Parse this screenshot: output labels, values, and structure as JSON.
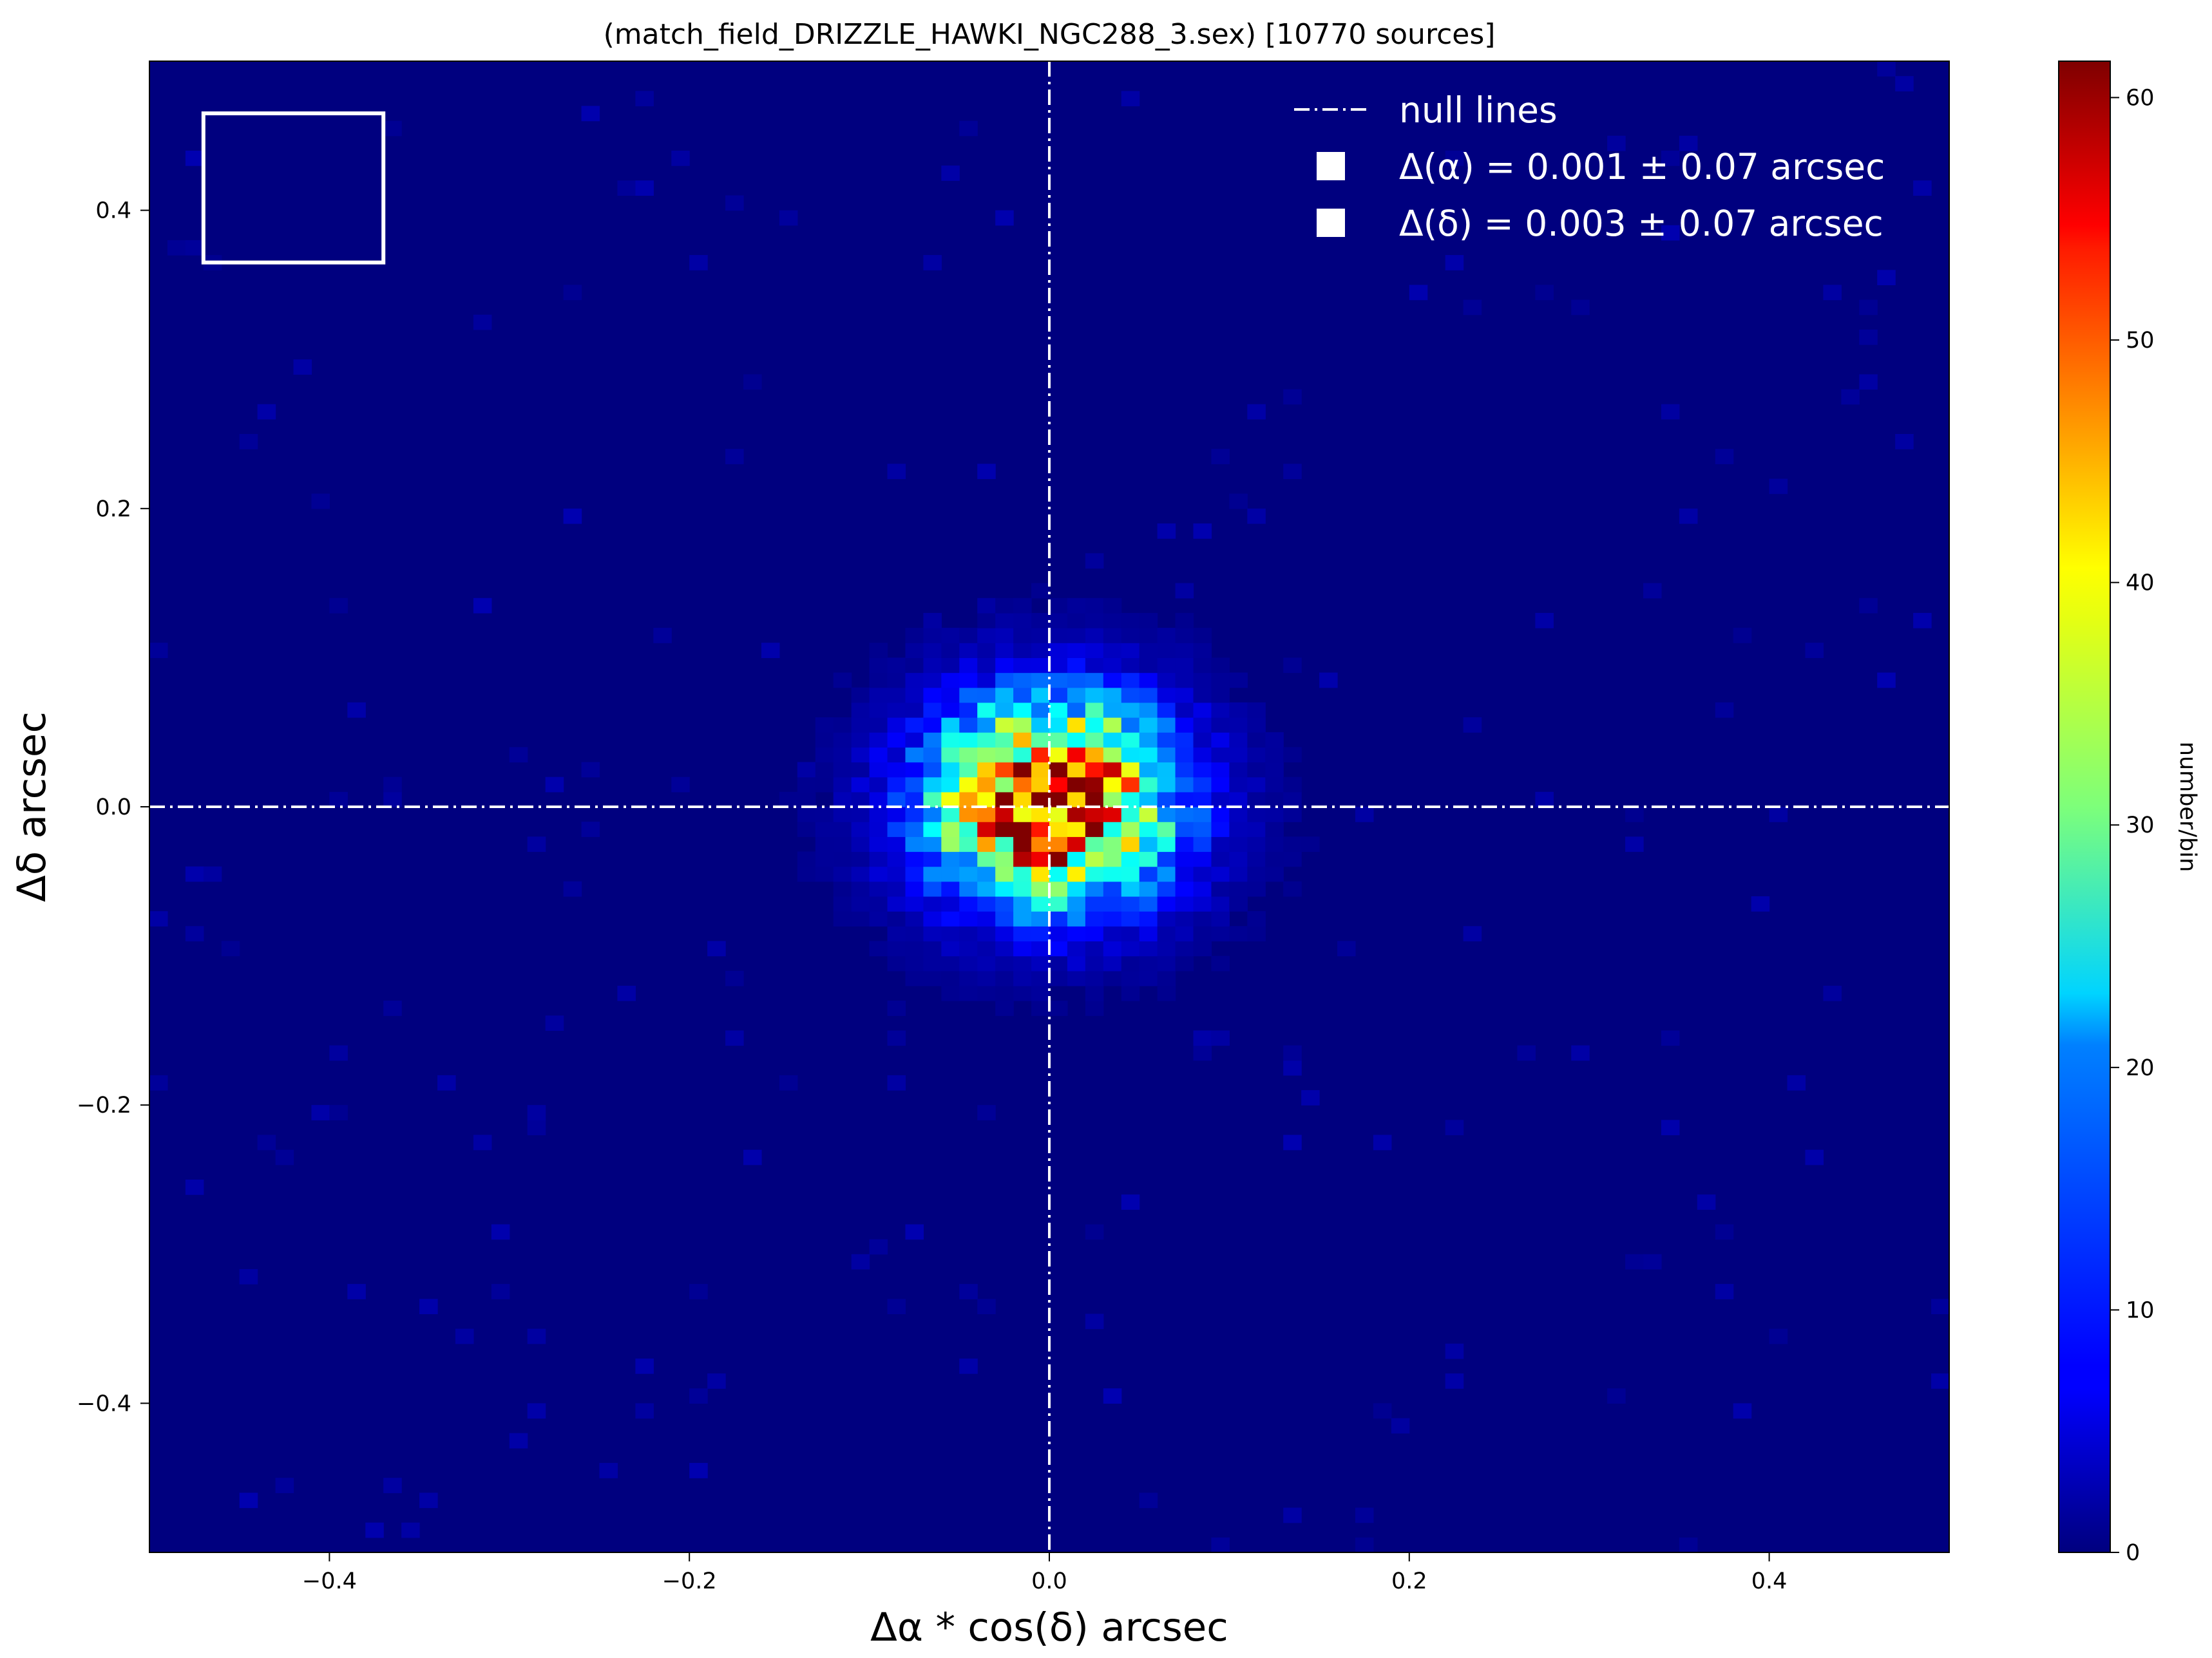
{
  "chart_data": {
    "type": "heatmap",
    "title": "(match_field_DRIZZLE_HAWKI_NGC288_3.sex)  [10770  sources]",
    "xlabel": "Δα * cos(δ) arcsec",
    "ylabel": "Δδ arcsec",
    "colorbar_label": "number/bin",
    "xlim": [
      -0.5,
      0.5
    ],
    "ylim": [
      -0.5,
      0.5
    ],
    "x_ticks": [
      -0.4,
      -0.2,
      0.0,
      0.2,
      0.4
    ],
    "x_tick_labels": [
      "−0.4",
      "−0.2",
      "0.0",
      "0.2",
      "0.4"
    ],
    "y_ticks": [
      -0.4,
      -0.2,
      0.0,
      0.2,
      0.4
    ],
    "y_tick_labels": [
      "−0.4",
      "−0.2",
      "0.0",
      "0.2",
      "0.4"
    ],
    "colorbar_range": [
      0,
      61.5
    ],
    "colorbar_ticks": [
      0,
      10,
      20,
      30,
      40,
      50,
      60
    ],
    "colorbar_tick_labels": [
      "0",
      "10",
      "20",
      "30",
      "40",
      "50",
      "60"
    ],
    "colormap": "jet",
    "bins_per_axis": 100,
    "peak_counts": 61,
    "n_sources": 10770,
    "center": {
      "dx": 0.001,
      "dy": 0.003
    },
    "sigma": {
      "dx": 0.07,
      "dy": 0.07
    },
    "null_lines": {
      "x": 0.0,
      "y": 0.0
    },
    "inset_box": {
      "x0": -0.47,
      "x1": -0.37,
      "y0": 0.365,
      "y1": 0.465,
      "color": "#ffffff"
    },
    "legend": {
      "position": "upper right",
      "entries": [
        "null lines",
        "Δ(α) = 0.001 ± 0.07 arcsec",
        "Δ(δ) = 0.003 ± 0.07 arcsec"
      ]
    },
    "colors": {
      "background_bin": "#00007f",
      "null_line": "#ffffff",
      "frame": "#000000"
    }
  }
}
